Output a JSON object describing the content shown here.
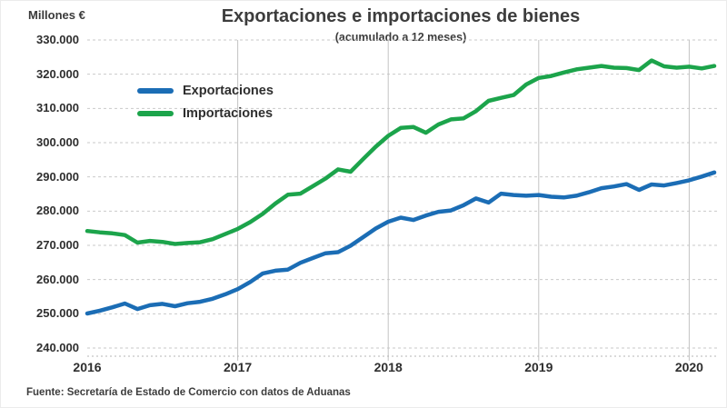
{
  "header": {
    "units_label": "Millones €",
    "title": "Exportaciones e importaciones de bienes",
    "subtitle": "(acumulado a 12 meses)"
  },
  "footer": {
    "source": "Fuente: Secretaría de Estado de Comercio con datos de Aduanas"
  },
  "colors": {
    "exports_line": "#1b6db5",
    "imports_line": "#1ca44b",
    "gridline": "#c9c9c9",
    "year_gridline": "#c3c3c3",
    "axis_line": "#b5b5b5",
    "text": "#3d3d3d"
  },
  "chart_data": {
    "type": "line",
    "title": "Exportaciones e importaciones de bienes",
    "subtitle": "(acumulado a 12 meses)",
    "ylabel": "Millones €",
    "xlabel": "",
    "ylim": [
      240000,
      330000
    ],
    "ytick_step": 10000,
    "ytick_labels_top_to_bottom": [
      "330.000",
      "320.000",
      "310.000",
      "300.000",
      "290.000",
      "280.000",
      "270.000",
      "260.000",
      "250.000",
      "240.000"
    ],
    "grid": {
      "horizontal": "dashed",
      "vertical": "solid-at-year-starts"
    },
    "legend_position": "inside-upper-left",
    "months": [
      "2016-01",
      "2016-02",
      "2016-03",
      "2016-04",
      "2016-05",
      "2016-06",
      "2016-07",
      "2016-08",
      "2016-09",
      "2016-10",
      "2016-11",
      "2016-12",
      "2017-01",
      "2017-02",
      "2017-03",
      "2017-04",
      "2017-05",
      "2017-06",
      "2017-07",
      "2017-08",
      "2017-09",
      "2017-10",
      "2017-11",
      "2017-12",
      "2018-01",
      "2018-02",
      "2018-03",
      "2018-04",
      "2018-05",
      "2018-06",
      "2018-07",
      "2018-08",
      "2018-09",
      "2018-10",
      "2018-11",
      "2018-12",
      "2019-01",
      "2019-02",
      "2019-03",
      "2019-04",
      "2019-05",
      "2019-06",
      "2019-07",
      "2019-08",
      "2019-09",
      "2019-10",
      "2019-11",
      "2019-12",
      "2020-01",
      "2020-02",
      "2020-03"
    ],
    "year_ticks": [
      {
        "label": "2016",
        "month_index": 0,
        "gridline": false
      },
      {
        "label": "2017",
        "month_index": 12,
        "gridline": true
      },
      {
        "label": "2018",
        "month_index": 24,
        "gridline": true
      },
      {
        "label": "2019",
        "month_index": 36,
        "gridline": true
      },
      {
        "label": "2020",
        "month_index": 48,
        "gridline": true
      }
    ],
    "series": [
      {
        "name": "Exportaciones",
        "color": "#1b6db5",
        "values": [
          250100,
          250900,
          251900,
          253000,
          251400,
          252500,
          252900,
          252200,
          253100,
          253500,
          254400,
          255700,
          257200,
          259300,
          261800,
          262600,
          262900,
          264900,
          266300,
          267700,
          268000,
          269900,
          272400,
          274900,
          276900,
          278100,
          277400,
          278700,
          279800,
          280200,
          281700,
          283700,
          282500,
          285100,
          284700,
          284500,
          284700,
          284200,
          284000,
          284500,
          285500,
          286700,
          287200,
          287900,
          286200,
          287800,
          287500,
          288200,
          289000,
          290100,
          291300
        ]
      },
      {
        "name": "Importaciones",
        "color": "#1ca44b",
        "values": [
          274200,
          273800,
          273500,
          273000,
          270800,
          271300,
          271000,
          270400,
          270700,
          270900,
          271800,
          273300,
          274800,
          276800,
          279200,
          282200,
          284800,
          285100,
          287300,
          289500,
          292200,
          291500,
          295200,
          298800,
          302000,
          304300,
          304600,
          302900,
          305300,
          306800,
          307100,
          309200,
          312200,
          313100,
          313900,
          317000,
          318900,
          319500,
          320500,
          321400,
          321900,
          322400,
          321900,
          321800,
          321200,
          324000,
          322300,
          321900,
          322200,
          321700,
          322400
        ]
      }
    ]
  }
}
